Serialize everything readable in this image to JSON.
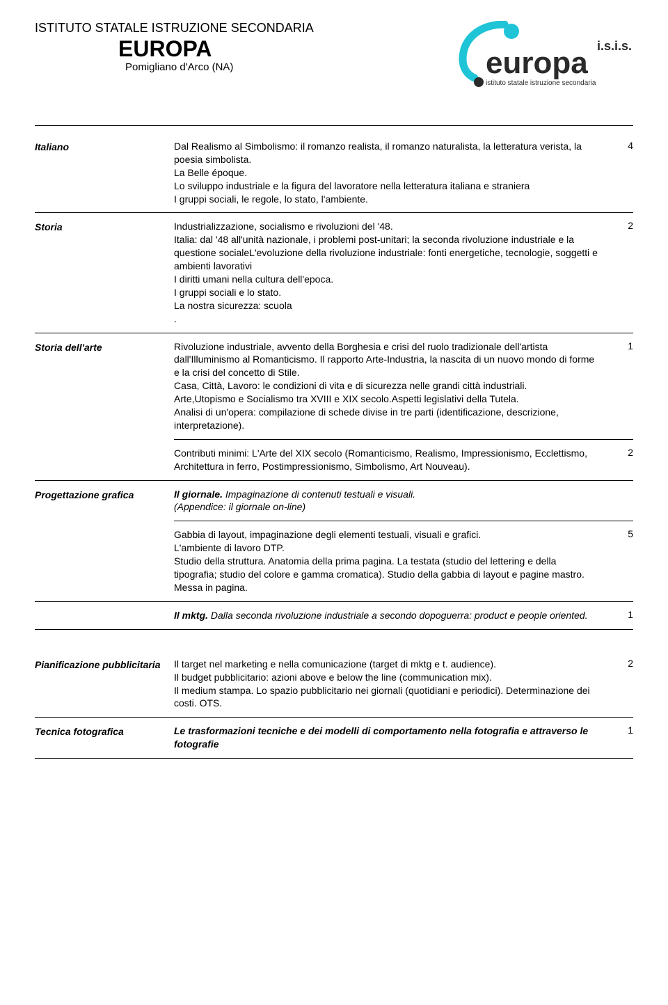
{
  "header": {
    "sup": "ISTITUTO STATALE ISTRUZIONE SECONDARIA",
    "title": "EUROPA",
    "sub": "Pomigliano d'Arco (NA)",
    "logo_text_main": "europa",
    "logo_text_abbr": "i.s.i.s.",
    "logo_text_sub": "istituto statale istruzione secondaria"
  },
  "colors": {
    "text": "#000000",
    "rule": "#000000",
    "logo_cyan": "#1fc4d6",
    "logo_dark": "#2a2a2a"
  },
  "rows": [
    {
      "subject": "Italiano",
      "blocks": [
        {
          "text": "Dal Realismo al Simbolismo: il romanzo realista, il romanzo naturalista, la letteratura verista, la poesia simbolista.\nLa Belle époque.\nLo sviluppo industriale e la figura del lavoratore nella letteratura italiana e straniera\nI gruppi sociali, le regole, lo stato, l'ambiente.",
          "hours": "4"
        }
      ]
    },
    {
      "subject": "Storia",
      "blocks": [
        {
          "text": "Industrializzazione, socialismo e rivoluzioni del '48.\nItalia: dal '48 all'unità nazionale, i problemi post-unitari; la seconda rivoluzione industriale e la questione socialeL'evoluzione della rivoluzione industriale: fonti energetiche, tecnologie, soggetti e ambienti lavorativi\nI diritti umani nella cultura dell'epoca.\nI gruppi sociali e lo stato.\nLa nostra sicurezza: scuola\n.",
          "hours": "2"
        }
      ]
    },
    {
      "subject": "Storia dell'arte",
      "blocks": [
        {
          "text": "Rivoluzione industriale, avvento della Borghesia e crisi del ruolo tradizionale dell'artista dall'Illuminismo al Romanticismo.                    Il rapporto Arte-Industria, la nascita di un nuovo mondo di forme e la crisi del concetto di Stile.\nCasa, Città, Lavoro: le condizioni di vita e di sicurezza nelle grandi città industriali.\nArte,Utopismo e Socialismo tra XVIII e XIX secolo.Aspetti  legislativi della Tutela.\nAnalisi di un'opera: compilazione di schede divise in tre parti (identificazione, descrizione, interpretazione).",
          "hours": "1"
        },
        {
          "text": "Contributi minimi:  L'Arte del XIX secolo (Romanticismo, Realismo, Impressionismo, Ecclettismo, Architettura in ferro, Postimpressionismo, Simbolismo, Art Nouveau).",
          "hours": "2"
        }
      ]
    },
    {
      "subject": "Progettazione grafica",
      "title_block": {
        "line1": "Il giornale. Impaginazione di contenuti testuali e visuali.",
        "line2": "(Appendice: il giornale on-line)"
      },
      "blocks": [
        {
          "text": "Gabbia di layout, impaginazione degli elementi testuali, visuali e grafici.\nL'ambiente di lavoro DTP.\nStudio della struttura. Anatomia della prima pagina. La testata (studio del lettering e della tipografia; studio del colore e gamma cromatica). Studio della gabbia di layout e pagine mastro.\nMessa in pagina.",
          "hours": "5"
        }
      ]
    },
    {
      "subject": "",
      "title_block": {
        "line1": "Il mktg. Dalla seconda rivoluzione industriale a secondo dopoguerra: product e people oriented.",
        "line2": ""
      },
      "title_hours": "1",
      "blocks": []
    },
    {
      "subject": "Pianificazione pubblicitaria",
      "spacer": true,
      "blocks": [
        {
          "text": "Il target nel marketing e nella comunicazione (target di mktg e t. audience).\nIl budget pubblicitario: azioni above e below the line (communication mix).\nIl medium stampa. Lo spazio pubblicitario nei giornali (quotidiani e periodici). Determinazione dei costi. OTS.",
          "hours": "2"
        }
      ]
    },
    {
      "subject": "Tecnica fotografica",
      "blocks": [
        {
          "italic": true,
          "text": "Le trasformazioni tecniche e dei modelli di comportamento nella fotografia e attraverso le fotografie",
          "hours": "1"
        }
      ]
    }
  ]
}
